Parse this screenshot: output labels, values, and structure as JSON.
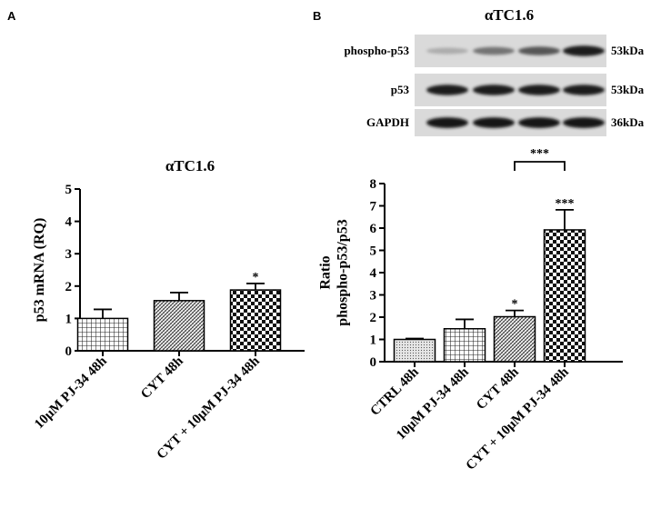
{
  "panels": {
    "a_letter": "A",
    "b_letter": "B"
  },
  "western_blot": {
    "title": "αTC1.6",
    "rows": [
      {
        "label": "phospho-p53",
        "size": "53kDa",
        "band_intensity": [
          0.15,
          0.45,
          0.6,
          0.9
        ]
      },
      {
        "label": "p53",
        "size": "53kDa",
        "band_intensity": [
          0.9,
          0.9,
          0.9,
          0.9
        ]
      },
      {
        "label": "GAPDH",
        "size": "36kDa",
        "band_intensity": [
          0.95,
          0.95,
          0.95,
          0.95
        ]
      }
    ]
  },
  "chart_data": [
    {
      "type": "bar",
      "title": "αTC1.6",
      "ylabel": "p53 mRNA (RQ)",
      "xlabel": "",
      "ylim": [
        0,
        5
      ],
      "yticks": [
        "0",
        "1",
        "2",
        "3",
        "4",
        "5"
      ],
      "categories": [
        "10μM PJ-34 48h",
        "CYT 48h",
        "CYT + 10μM PJ-34 48h"
      ],
      "values": [
        1.0,
        1.55,
        1.88
      ],
      "errors": [
        0.28,
        0.25,
        0.2
      ],
      "significance": [
        "",
        "",
        "*"
      ],
      "patterns": [
        "grid",
        "diag",
        "check"
      ]
    },
    {
      "type": "bar",
      "title": "",
      "ylabel": "Ratio\nphospho-p53/p53",
      "ylabel_lines": [
        "Ratio",
        "phospho-p53/p53"
      ],
      "xlabel": "",
      "ylim": [
        0,
        8
      ],
      "yticks": [
        "0",
        "1",
        "2",
        "3",
        "4",
        "5",
        "6",
        "7",
        "8"
      ],
      "categories": [
        "CTRL 48h",
        "10μM PJ-34 48h",
        "CYT 48h",
        "CYT + 10μM PJ-34 48h"
      ],
      "values": [
        1.0,
        1.48,
        2.02,
        5.92
      ],
      "errors": [
        0.04,
        0.42,
        0.28,
        0.9
      ],
      "significance": [
        "",
        "",
        "*",
        "***"
      ],
      "bracket": {
        "from": 2,
        "to": 3,
        "label": "***"
      },
      "patterns": [
        "dots",
        "grid",
        "diag",
        "check"
      ]
    }
  ]
}
